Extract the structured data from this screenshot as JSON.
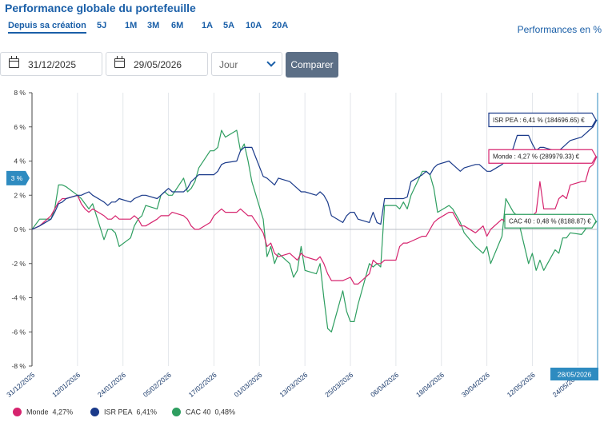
{
  "header": {
    "title": "Performance globale du portefeuille",
    "perf_unit": "Performances en %"
  },
  "ranges": [
    {
      "label": "Depuis sa création",
      "active": true
    },
    {
      "label": "5J",
      "active": false
    },
    {
      "label": "1M",
      "active": false
    },
    {
      "label": "3M",
      "active": false
    },
    {
      "label": "6M",
      "active": false
    },
    {
      "label": "1A",
      "active": false
    },
    {
      "label": "5A",
      "active": false
    },
    {
      "label": "10A",
      "active": false
    },
    {
      "label": "20A",
      "active": false
    }
  ],
  "filters": {
    "start_date": "31/12/2025",
    "end_date": "29/05/2026",
    "period": "Jour",
    "compare_label": "Comparer"
  },
  "colors": {
    "monde": "#d6246e",
    "isr": "#1a3a8a",
    "cac": "#2e9e60",
    "accent": "#1a5fa8",
    "badge": "#2e8bc0"
  },
  "chart_data": {
    "type": "line",
    "ylim": [
      -8,
      8
    ],
    "yticks": [
      8,
      6,
      4,
      2,
      0,
      -2,
      -4,
      -6,
      -8
    ],
    "ytick_labels": [
      "8 %",
      "6 %",
      "4 %",
      "2 %",
      "0 %",
      "-2 %",
      "-4 %",
      "-6 %",
      "-8 %"
    ],
    "x": [
      "2025-12-31",
      "2026-01-02",
      "2026-01-05",
      "2026-01-06",
      "2026-01-07",
      "2026-01-08",
      "2026-01-09",
      "2026-01-12",
      "2026-01-13",
      "2026-01-14",
      "2026-01-15",
      "2026-01-16",
      "2026-01-19",
      "2026-01-20",
      "2026-01-21",
      "2026-01-22",
      "2026-01-23",
      "2026-01-26",
      "2026-01-27",
      "2026-01-28",
      "2026-01-29",
      "2026-01-30",
      "2026-02-02",
      "2026-02-03",
      "2026-02-04",
      "2026-02-05",
      "2026-02-06",
      "2026-02-09",
      "2026-02-10",
      "2026-02-11",
      "2026-02-12",
      "2026-02-13",
      "2026-02-16",
      "2026-02-17",
      "2026-02-18",
      "2026-02-19",
      "2026-02-20",
      "2026-02-23",
      "2026-02-24",
      "2026-02-25",
      "2026-02-26",
      "2026-02-27",
      "2026-03-02",
      "2026-03-03",
      "2026-03-04",
      "2026-03-05",
      "2026-03-06",
      "2026-03-09",
      "2026-03-10",
      "2026-03-11",
      "2026-03-12",
      "2026-03-13",
      "2026-03-16",
      "2026-03-17",
      "2026-03-18",
      "2026-03-19",
      "2026-03-20",
      "2026-03-23",
      "2026-03-24",
      "2026-03-25",
      "2026-03-26",
      "2026-03-27",
      "2026-03-30",
      "2026-03-31",
      "2026-04-01",
      "2026-04-02",
      "2026-04-03",
      "2026-04-06",
      "2026-04-07",
      "2026-04-08",
      "2026-04-09",
      "2026-04-10",
      "2026-04-13",
      "2026-04-14",
      "2026-04-15",
      "2026-04-16",
      "2026-04-17",
      "2026-04-20",
      "2026-04-21",
      "2026-04-22",
      "2026-04-23",
      "2026-04-24",
      "2026-04-27",
      "2026-04-28",
      "2026-04-29",
      "2026-04-30",
      "2026-05-01",
      "2026-05-04",
      "2026-05-05",
      "2026-05-06",
      "2026-05-07",
      "2026-05-08",
      "2026-05-11",
      "2026-05-12",
      "2026-05-13",
      "2026-05-14",
      "2026-05-15",
      "2026-05-18",
      "2026-05-19",
      "2026-05-20",
      "2026-05-21",
      "2026-05-22",
      "2026-05-25",
      "2026-05-26",
      "2026-05-27",
      "2026-05-28",
      "2026-05-29"
    ],
    "xticks": [
      "2025-12-31",
      "2026-01-12",
      "2026-01-24",
      "2026-02-05",
      "2026-02-17",
      "2026-03-01",
      "2026-03-13",
      "2026-03-25",
      "2026-04-06",
      "2026-04-18",
      "2026-04-30",
      "2026-05-12",
      "2026-05-24"
    ],
    "xtick_labels": [
      "31/12/2025",
      "12/01/2026",
      "24/01/2026",
      "05/02/2026",
      "17/02/2026",
      "01/03/2026",
      "13/03/2026",
      "25/03/2026",
      "06/04/2026",
      "18/04/2026",
      "30/04/2026",
      "12/05/2026",
      "24/05/2026"
    ],
    "series": [
      {
        "name": "Monde",
        "last_label": "4,27%",
        "tooltip": "Monde : 4,27 % (289979.33) €",
        "values": [
          0,
          0.2,
          0.8,
          1.2,
          1.6,
          1.8,
          1.8,
          2.0,
          1.5,
          1.2,
          1.0,
          1.2,
          0.8,
          0.6,
          0.6,
          0.8,
          0.6,
          0.6,
          0.8,
          0.6,
          0.2,
          0.2,
          0.6,
          0.8,
          0.8,
          0.8,
          1.0,
          0.8,
          0.6,
          0.2,
          0,
          0,
          0.4,
          0.8,
          1.0,
          1.2,
          1.0,
          1.0,
          1.2,
          1.0,
          0.8,
          0.8,
          -0.2,
          -1.0,
          -0.8,
          -1.4,
          -1.6,
          -1.4,
          -1.6,
          -1.8,
          -1.4,
          -1.6,
          -1.8,
          -1.6,
          -2.0,
          -2.6,
          -3.0,
          -3.0,
          -2.9,
          -2.8,
          -3.2,
          -3.2,
          -2.6,
          -1.8,
          -2.0,
          -2.0,
          -1.8,
          -1.8,
          -1.0,
          -0.8,
          -0.8,
          -0.7,
          -0.4,
          -0.4,
          0,
          0.4,
          0.6,
          1.0,
          1.0,
          0.6,
          0.2,
          0.2,
          -0.2,
          0,
          0.2,
          -0.4,
          0,
          0.6,
          0.4,
          0.6,
          0.4,
          0.2,
          0.4,
          0.8,
          1.0,
          2.8,
          1.2,
          1.2,
          1.8,
          2.0,
          1.8,
          2.6,
          2.8,
          2.8,
          3.6,
          3.8,
          4.27
        ]
      },
      {
        "name": "ISR PEA",
        "last_label": "6,41%",
        "tooltip": "ISR PEA : 6,41 % (184696.65) €",
        "values": [
          0,
          0.2,
          0.6,
          1.0,
          1.5,
          1.6,
          1.8,
          2.0,
          2.0,
          2.1,
          2.2,
          2.0,
          1.6,
          1.4,
          1.6,
          1.6,
          1.8,
          1.6,
          1.8,
          1.9,
          2.0,
          2.0,
          1.8,
          2.0,
          2.2,
          2.4,
          2.2,
          2.2,
          2.4,
          2.8,
          3.0,
          3.2,
          3.2,
          3.2,
          3.4,
          3.8,
          3.9,
          4.0,
          4.6,
          4.8,
          4.8,
          4.8,
          3.1,
          3.0,
          2.8,
          2.6,
          3.0,
          2.8,
          2.6,
          2.4,
          2.2,
          2.2,
          2.0,
          2.2,
          2.0,
          1.6,
          0.8,
          0.4,
          0.8,
          1.0,
          1.0,
          0.6,
          0.4,
          1.0,
          0.4,
          0.3,
          1.8,
          1.8,
          1.8,
          1.8,
          1.9,
          2.8,
          3.2,
          3.4,
          3.2,
          3.6,
          3.8,
          4.0,
          3.8,
          3.6,
          3.4,
          3.6,
          3.8,
          3.8,
          3.6,
          3.4,
          3.4,
          3.8,
          4.0,
          4.2,
          4.8,
          5.5,
          5.5,
          5.0,
          4.6,
          4.8,
          4.8,
          4.6,
          4.6,
          4.8,
          5.0,
          5.2,
          5.4,
          5.6,
          5.8,
          6.0,
          6.41
        ]
      },
      {
        "name": "CAC 40",
        "last_label": "0,48%",
        "tooltip": "CAC 40 : 0,48 % (8188.87) €",
        "values": [
          0,
          0.6,
          0.6,
          1.2,
          2.6,
          2.6,
          2.5,
          2.0,
          1.8,
          1.5,
          1.2,
          1.5,
          -0.6,
          0,
          0,
          -0.2,
          -1.0,
          -0.5,
          0.2,
          0.6,
          0.8,
          1.4,
          1.2,
          2.0,
          2.2,
          2.0,
          2.0,
          3.0,
          2.2,
          2.4,
          2.8,
          3.6,
          4.6,
          4.6,
          4.8,
          5.8,
          5.4,
          5.8,
          4.6,
          5.0,
          4.0,
          2.8,
          0.6,
          -1.6,
          -1.0,
          -2.0,
          -1.4,
          -2.0,
          -2.8,
          -2.4,
          -1.0,
          -2.4,
          -2.6,
          -2.0,
          -4.0,
          -5.8,
          -6.0,
          -3.6,
          -4.8,
          -5.4,
          -5.4,
          -4.4,
          -2.0,
          -2.2,
          -2.0,
          -2.2,
          1.4,
          1.4,
          1.2,
          1.6,
          1.2,
          2.0,
          3.4,
          3.4,
          3.2,
          2.4,
          1.0,
          1.4,
          1.2,
          0.8,
          0.4,
          -0.2,
          -1.0,
          -1.2,
          -1.4,
          -1.0,
          -2.0,
          -0.4,
          1.8,
          1.4,
          1.0,
          0.8,
          -2.0,
          -1.4,
          -2.4,
          -1.8,
          -2.4,
          -1.2,
          -1.4,
          -0.5,
          -0.5,
          -0.2,
          -0.3,
          0,
          0.5,
          0.2,
          0.48
        ]
      }
    ],
    "hover_date": "28/05/2026",
    "y_marker_label": "3 %",
    "legend": "bottom"
  }
}
